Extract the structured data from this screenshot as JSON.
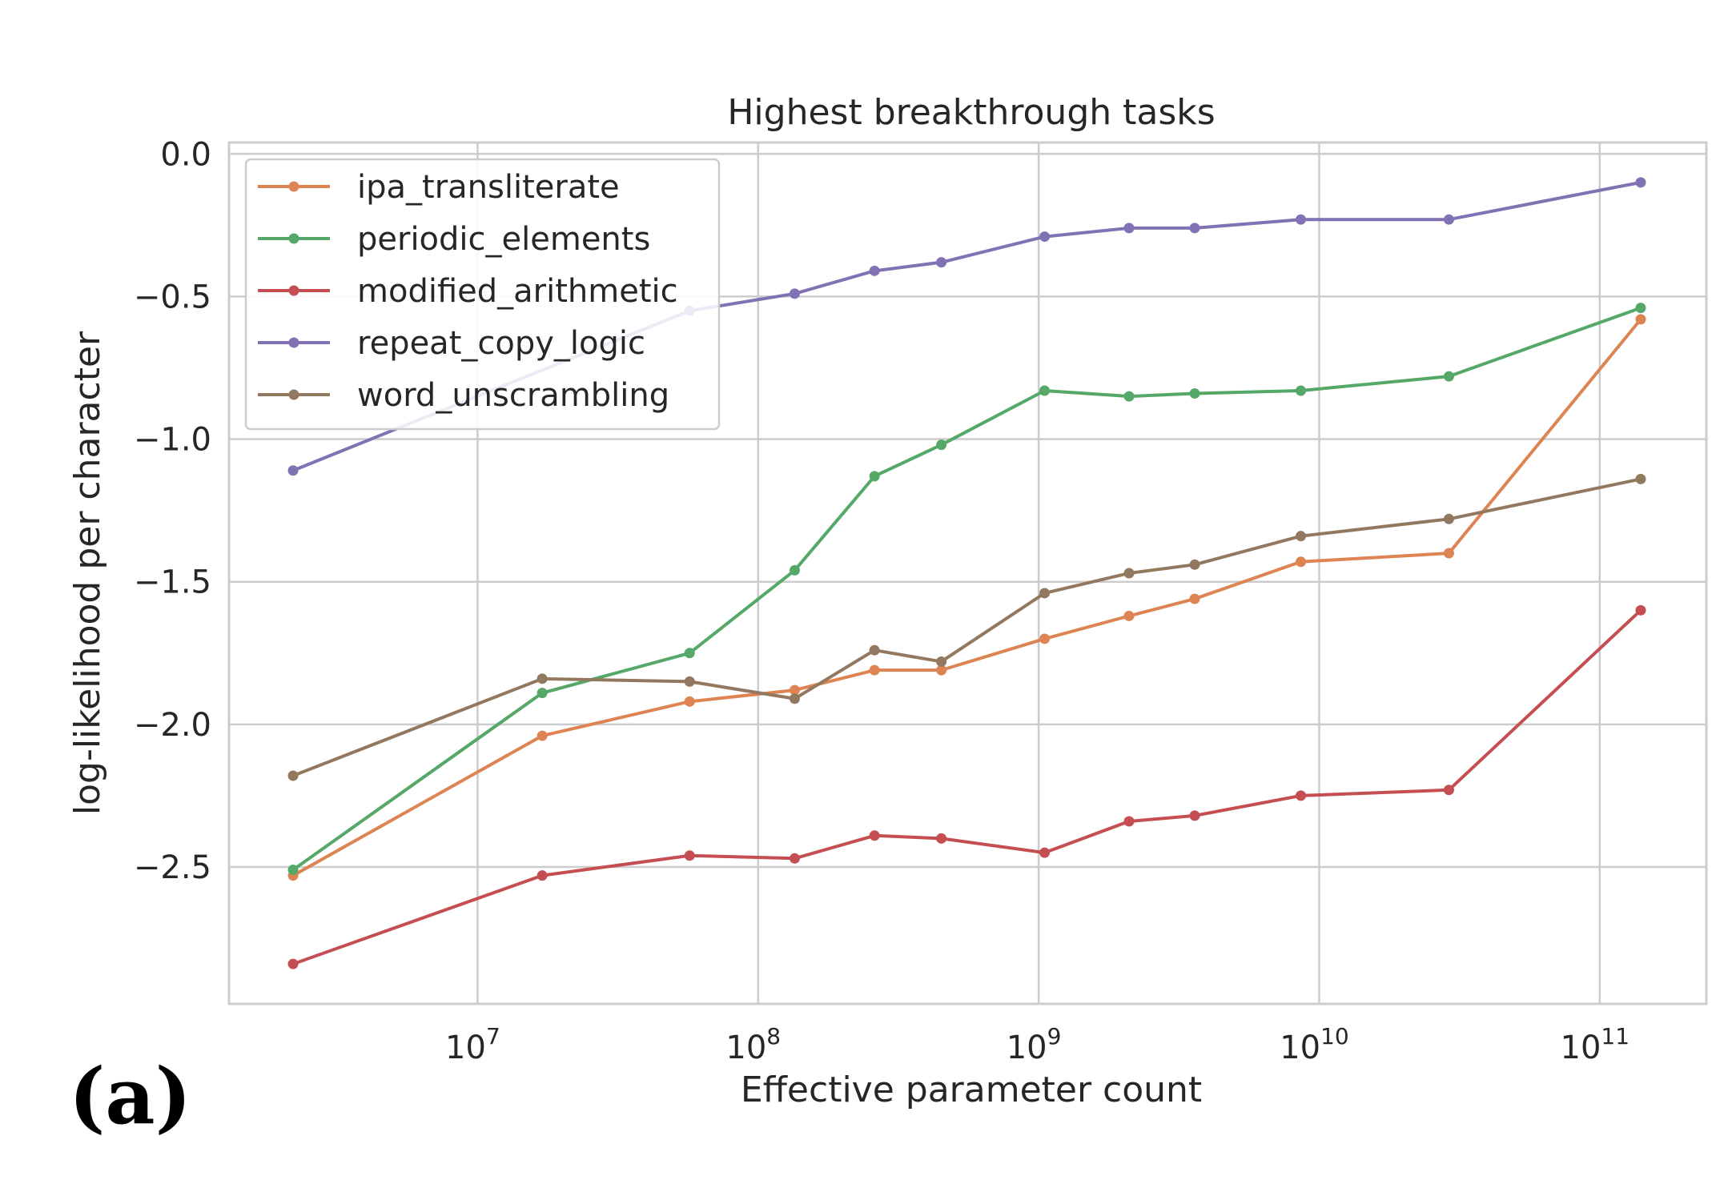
{
  "panel_label": "(a)",
  "chart_data": {
    "type": "line",
    "title": "Highest breakthrough tasks",
    "xlabel": "Effective parameter count",
    "ylabel": "log-likelihood per character",
    "xscale": "log",
    "xlim": [
      1300000.0,
      240000000000.0
    ],
    "ylim": [
      -2.98,
      0.04
    ],
    "x_ticks": [
      {
        "value": 10000000.0,
        "base": "10",
        "exp": "7"
      },
      {
        "value": 100000000.0,
        "base": "10",
        "exp": "8"
      },
      {
        "value": 1000000000.0,
        "base": "10",
        "exp": "9"
      },
      {
        "value": 10000000000.0,
        "base": "10",
        "exp": "10"
      },
      {
        "value": 100000000000.0,
        "base": "10",
        "exp": "11"
      }
    ],
    "y_ticks": [
      {
        "value": 0.0,
        "label": "0.0"
      },
      {
        "value": -0.5,
        "label": "−0.5"
      },
      {
        "value": -1.0,
        "label": "−1.0"
      },
      {
        "value": -1.5,
        "label": "−1.5"
      },
      {
        "value": -2.0,
        "label": "−2.0"
      },
      {
        "value": -2.5,
        "label": "−2.5"
      }
    ],
    "grid": true,
    "legend_position": "top-left",
    "x": [
      2200000.0,
      17000000.0,
      57000000.0,
      135000000.0,
      260000000.0,
      450000000.0,
      1050000000.0,
      2100000000.0,
      3600000000.0,
      8600000000.0,
      29000000000.0,
      140000000000.0
    ],
    "series": [
      {
        "name": "ipa_transliterate",
        "color": "#dd8452",
        "values": [
          -2.53,
          -2.04,
          -1.92,
          -1.88,
          -1.81,
          -1.81,
          -1.7,
          -1.62,
          -1.56,
          -1.43,
          -1.4,
          -0.58
        ]
      },
      {
        "name": "periodic_elements",
        "color": "#55a868",
        "values": [
          -2.51,
          -1.89,
          -1.75,
          -1.46,
          -1.13,
          -1.02,
          -0.83,
          -0.85,
          -0.84,
          -0.83,
          -0.78,
          -0.54
        ]
      },
      {
        "name": "modified_arithmetic",
        "color": "#c44e52",
        "values": [
          -2.84,
          -2.53,
          -2.46,
          -2.47,
          -2.39,
          -2.4,
          -2.45,
          -2.34,
          -2.32,
          -2.25,
          -2.23,
          -1.6
        ]
      },
      {
        "name": "repeat_copy_logic",
        "color": "#8172b3",
        "values": [
          -1.11,
          null,
          -0.55,
          -0.49,
          -0.41,
          -0.38,
          -0.29,
          -0.26,
          -0.26,
          -0.23,
          -0.23,
          -0.1
        ]
      },
      {
        "name": "word_unscrambling",
        "color": "#937860",
        "values": [
          -2.18,
          -1.84,
          -1.85,
          -1.91,
          -1.74,
          -1.78,
          -1.54,
          -1.47,
          -1.44,
          -1.34,
          -1.28,
          -1.14
        ]
      }
    ]
  }
}
